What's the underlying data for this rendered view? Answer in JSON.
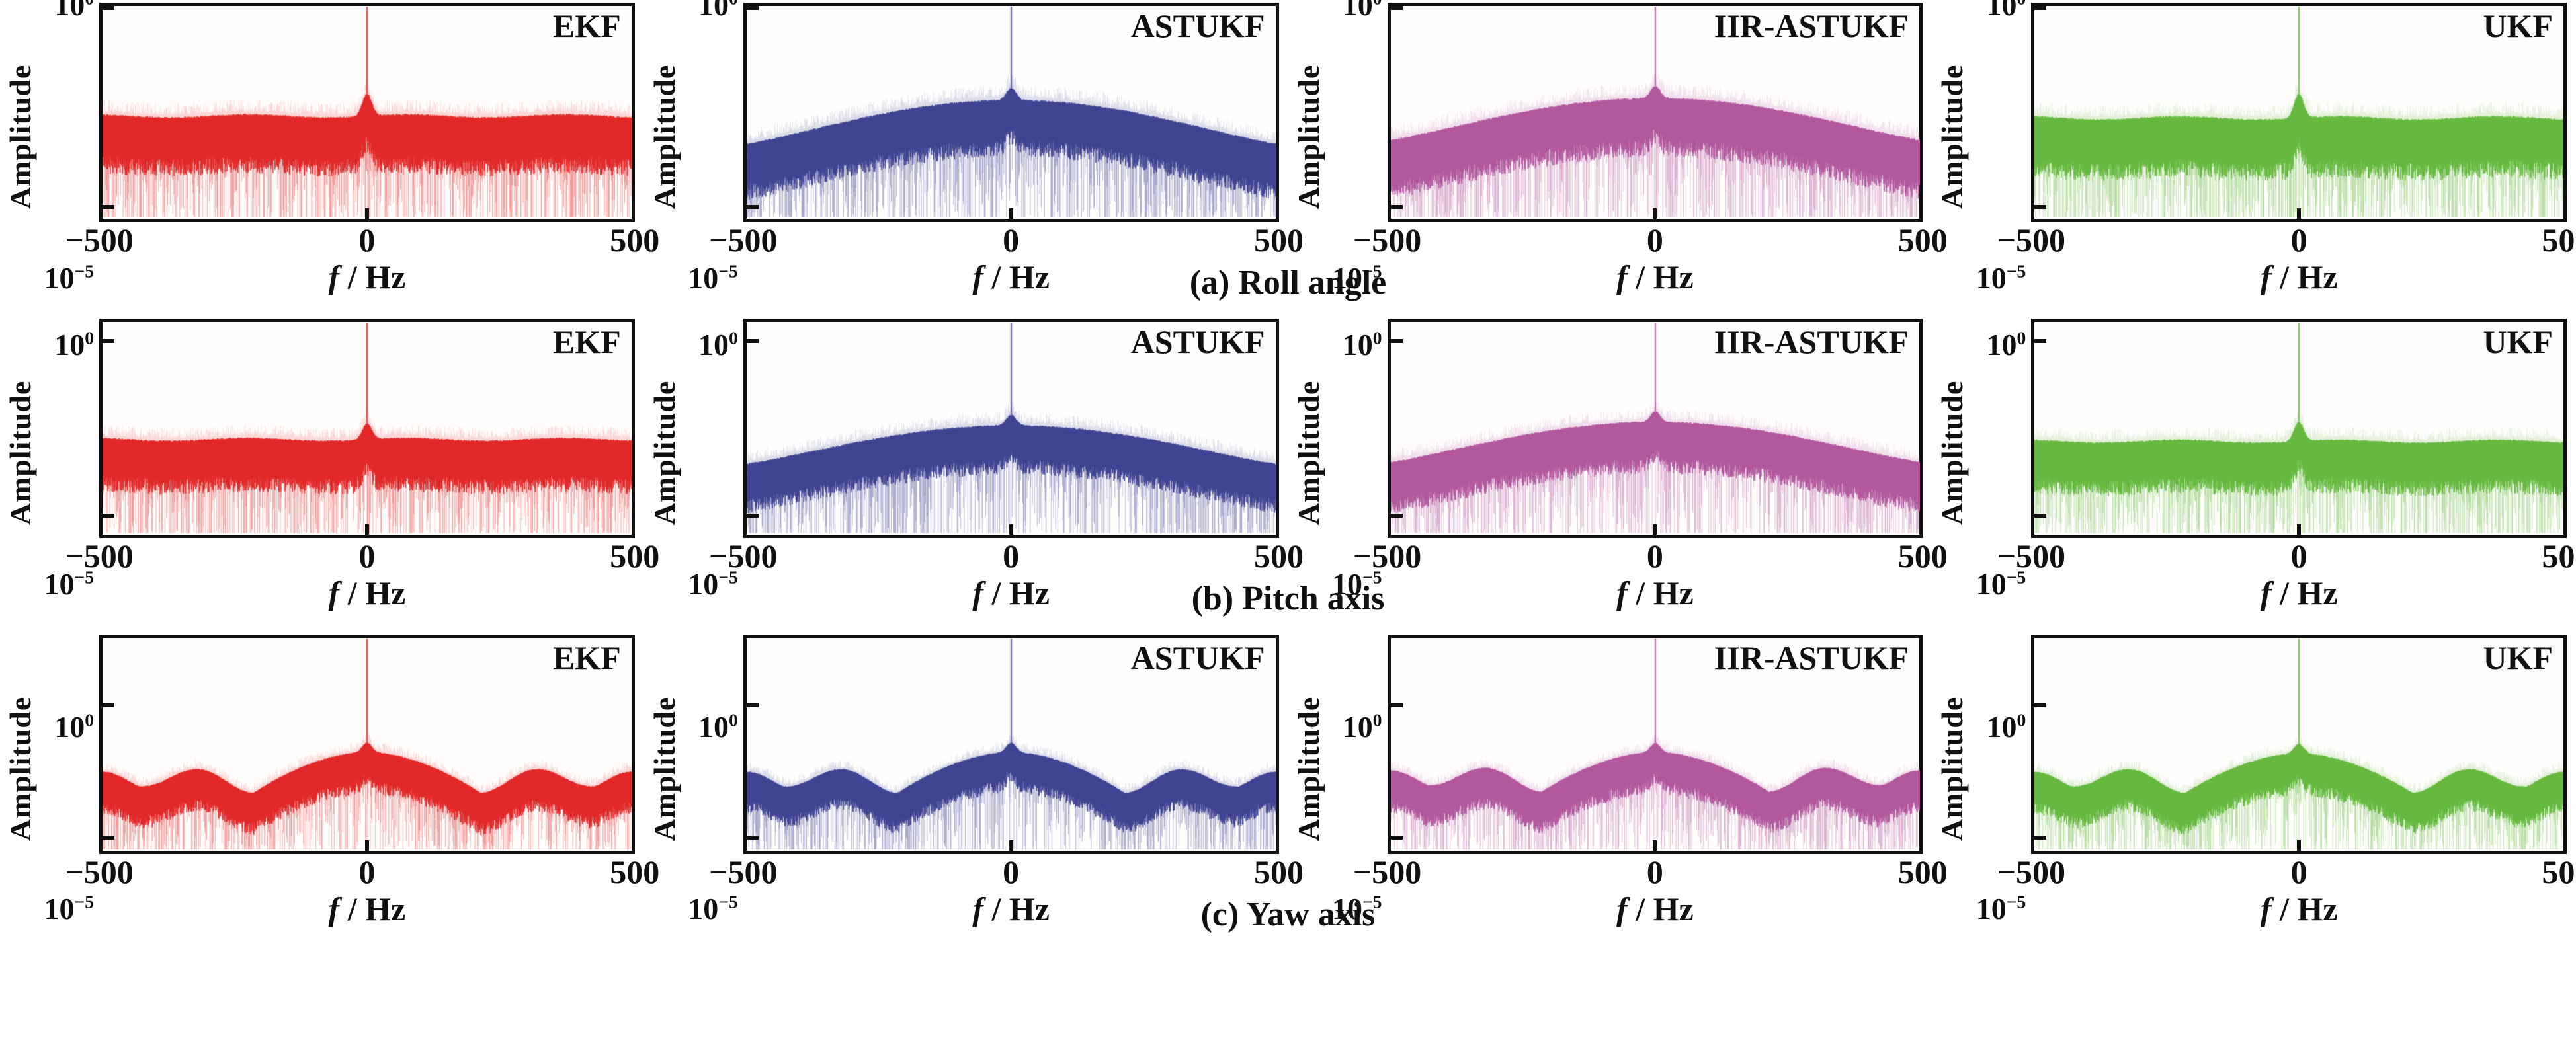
{
  "figure": {
    "kind": "FFT amplitude spectra comparison of Kalman filter variants",
    "columns": [
      "EKF",
      "ASTUKF",
      "IIR-ASTUKF",
      "UKF"
    ],
    "row_captions": [
      "(a) Roll angle",
      "(b) Pitch axis",
      "(c) Yaw axis"
    ]
  },
  "chart_data": {
    "type": "line",
    "x": {
      "label_italic": "f",
      "label_rest": " / Hz",
      "min": -500,
      "max": 500,
      "tick_labels": [
        "−500",
        "0",
        "500"
      ],
      "tick_values": [
        -500,
        0,
        500
      ]
    },
    "y": {
      "label": "Amplitude",
      "scale": "log",
      "tick_labels": [
        {
          "base": "10",
          "exp": "0",
          "value_log10": 0
        },
        {
          "base": "10",
          "exp": "−5",
          "value_log10": -5
        }
      ]
    },
    "rows": [
      {
        "caption": "(a) Roll angle",
        "ylim_log": [
          -5.3,
          0.05
        ],
        "panels": [
          {
            "filter": "EKF",
            "color": "#e22727",
            "envelope": {
              "type": "flat",
              "top_log": -2.7
            },
            "band_thickness_dec": 1.25,
            "center_bump_dec": 0.55,
            "spike_at_hz": 0,
            "spike_to_top": true
          },
          {
            "filter": "ASTUKF",
            "color": "#3f4291",
            "envelope": {
              "type": "dome",
              "center_top_log": -2.3,
              "edge_top_log": -3.4
            },
            "band_thickness_dec": 1.2,
            "center_bump_dec": 0.3,
            "spike_at_hz": 0,
            "spike_to_top": true
          },
          {
            "filter": "IIR-ASTUKF",
            "color": "#b2569e",
            "envelope": {
              "type": "dome",
              "center_top_log": -2.25,
              "edge_top_log": -3.3
            },
            "band_thickness_dec": 1.25,
            "center_bump_dec": 0.3,
            "spike_at_hz": 0,
            "spike_to_top": true
          },
          {
            "filter": "UKF",
            "color": "#65b83e",
            "envelope": {
              "type": "flat",
              "top_log": -2.75
            },
            "band_thickness_dec": 1.3,
            "center_bump_dec": 0.6,
            "spike_at_hz": 0,
            "spike_to_top": true
          }
        ]
      },
      {
        "caption": "(b) Pitch axis",
        "ylim_log": [
          -5.55,
          0.55
        ],
        "panels": [
          {
            "filter": "EKF",
            "color": "#e22727",
            "envelope": {
              "type": "flat",
              "top_log": -2.8
            },
            "band_thickness_dec": 1.3,
            "center_bump_dec": 0.45,
            "spike_at_hz": 0,
            "spike_to_top": true
          },
          {
            "filter": "ASTUKF",
            "color": "#3f4291",
            "envelope": {
              "type": "dome",
              "center_top_log": -2.4,
              "edge_top_log": -3.5
            },
            "band_thickness_dec": 1.2,
            "center_bump_dec": 0.3,
            "spike_at_hz": 0,
            "spike_to_top": true
          },
          {
            "filter": "IIR-ASTUKF",
            "color": "#b2569e",
            "envelope": {
              "type": "dome",
              "center_top_log": -2.3,
              "edge_top_log": -3.45
            },
            "band_thickness_dec": 1.25,
            "center_bump_dec": 0.3,
            "spike_at_hz": 0,
            "spike_to_top": true
          },
          {
            "filter": "UKF",
            "color": "#65b83e",
            "envelope": {
              "type": "flat",
              "top_log": -2.85
            },
            "band_thickness_dec": 1.3,
            "center_bump_dec": 0.55,
            "spike_at_hz": 0,
            "spike_to_top": true
          }
        ]
      },
      {
        "caption": "(c) Yaw axis",
        "ylim_log": [
          -5.5,
          2.55
        ],
        "panels": [
          {
            "filter": "EKF",
            "color": "#e22727",
            "envelope": {
              "type": "scalloped",
              "center_top_log": -1.75,
              "first_null_hz": 215,
              "first_null_log": -3.3,
              "side_top_log": -2.4,
              "second_null_hz": 430,
              "second_null_log": -3.05,
              "edge_top_log": -2.5
            },
            "band_thickness_dec": 1.35,
            "center_bump_dec": 0.35,
            "spike_at_hz": 0,
            "spike_to_top": true
          },
          {
            "filter": "ASTUKF",
            "color": "#3f4291",
            "envelope": {
              "type": "scalloped",
              "center_top_log": -1.75,
              "first_null_hz": 215,
              "first_null_log": -3.3,
              "side_top_log": -2.4,
              "second_null_hz": 430,
              "second_null_log": -3.05,
              "edge_top_log": -2.5
            },
            "band_thickness_dec": 1.3,
            "center_bump_dec": 0.35,
            "spike_at_hz": 0,
            "spike_to_top": true
          },
          {
            "filter": "IIR-ASTUKF",
            "color": "#b2569e",
            "envelope": {
              "type": "scalloped",
              "center_top_log": -1.75,
              "first_null_hz": 215,
              "first_null_log": -3.25,
              "side_top_log": -2.35,
              "second_null_hz": 430,
              "second_null_log": -3.0,
              "edge_top_log": -2.45
            },
            "band_thickness_dec": 1.35,
            "center_bump_dec": 0.35,
            "spike_at_hz": 0,
            "spike_to_top": true
          },
          {
            "filter": "UKF",
            "color": "#65b83e",
            "envelope": {
              "type": "scalloped",
              "center_top_log": -1.8,
              "first_null_hz": 215,
              "first_null_log": -3.3,
              "side_top_log": -2.4,
              "second_null_hz": 430,
              "second_null_log": -3.05,
              "edge_top_log": -2.5
            },
            "band_thickness_dec": 1.35,
            "center_bump_dec": 0.35,
            "spike_at_hz": 0,
            "spike_to_top": true
          }
        ]
      }
    ]
  }
}
